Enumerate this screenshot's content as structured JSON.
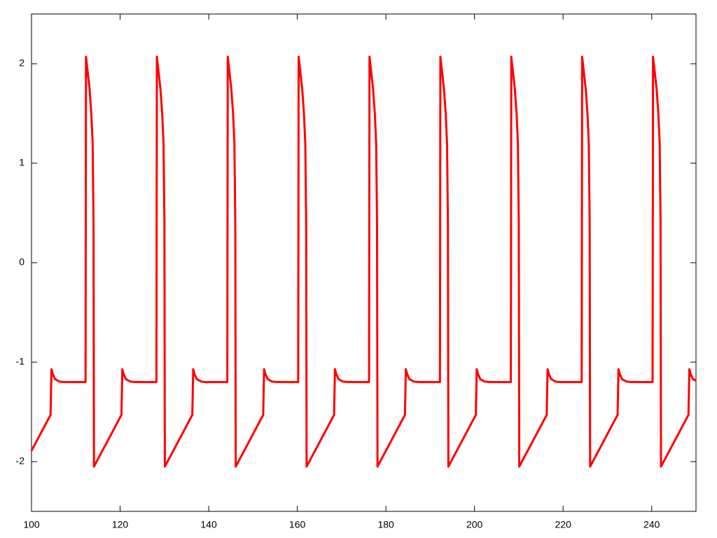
{
  "chart_data": {
    "type": "line",
    "x": [
      100,
      104.3,
      104.5,
      104.8,
      105.3,
      106.3,
      107.3,
      112.2,
      112.3,
      112.6,
      113.1,
      113.5,
      113.8,
      114.0,
      114.1,
      120.3,
      120.5,
      120.8,
      121.3,
      122.3,
      123.3,
      128.2,
      128.3,
      128.6,
      129.1,
      129.5,
      129.8,
      130.0,
      130.1,
      136.3,
      136.5,
      136.8,
      137.3,
      138.3,
      139.3,
      144.2,
      144.3,
      144.6,
      145.1,
      145.5,
      145.8,
      146.0,
      146.1,
      152.3,
      152.5,
      152.8,
      153.3,
      154.3,
      155.3,
      160.2,
      160.3,
      160.6,
      161.1,
      161.5,
      161.8,
      162.0,
      162.1,
      168.3,
      168.5,
      168.8,
      169.3,
      170.3,
      171.3,
      176.2,
      176.3,
      176.6,
      177.1,
      177.5,
      177.8,
      178.0,
      178.1,
      184.3,
      184.5,
      184.8,
      185.3,
      186.3,
      187.3,
      192.2,
      192.3,
      192.6,
      193.1,
      193.5,
      193.8,
      194.0,
      194.1,
      200.3,
      200.5,
      200.8,
      201.3,
      202.3,
      203.3,
      208.2,
      208.3,
      208.6,
      209.1,
      209.5,
      209.8,
      210.0,
      210.1,
      216.3,
      216.5,
      216.8,
      217.3,
      218.3,
      219.3,
      224.2,
      224.3,
      224.6,
      225.1,
      225.5,
      225.8,
      226.0,
      226.1,
      232.3,
      232.5,
      232.8,
      233.3,
      234.3,
      235.3,
      240.2,
      240.3,
      240.6,
      241.1,
      241.5,
      241.8,
      242.0,
      242.1,
      248.3,
      248.5,
      248.8,
      249.3,
      250
    ],
    "series": [
      {
        "color": "#ff0000",
        "values": [
          -1.89,
          -1.53,
          -1.07,
          -1.12,
          -1.17,
          -1.195,
          -1.2,
          -1.2,
          2.07,
          1.95,
          1.75,
          1.5,
          1.2,
          0.4,
          -2.05,
          -1.53,
          -1.07,
          -1.12,
          -1.17,
          -1.195,
          -1.2,
          -1.2,
          2.07,
          1.95,
          1.75,
          1.5,
          1.2,
          0.4,
          -2.05,
          -1.53,
          -1.07,
          -1.12,
          -1.17,
          -1.195,
          -1.2,
          -1.2,
          2.07,
          1.95,
          1.75,
          1.5,
          1.2,
          0.4,
          -2.05,
          -1.53,
          -1.07,
          -1.12,
          -1.17,
          -1.195,
          -1.2,
          -1.2,
          2.07,
          1.95,
          1.75,
          1.5,
          1.2,
          0.4,
          -2.05,
          -1.53,
          -1.07,
          -1.12,
          -1.17,
          -1.195,
          -1.2,
          -1.2,
          2.07,
          1.95,
          1.75,
          1.5,
          1.2,
          0.4,
          -2.05,
          -1.53,
          -1.07,
          -1.12,
          -1.17,
          -1.195,
          -1.2,
          -1.2,
          2.07,
          1.95,
          1.75,
          1.5,
          1.2,
          0.4,
          -2.05,
          -1.53,
          -1.07,
          -1.12,
          -1.17,
          -1.195,
          -1.2,
          -1.2,
          2.07,
          1.95,
          1.75,
          1.5,
          1.2,
          0.4,
          -2.05,
          -1.53,
          -1.07,
          -1.12,
          -1.17,
          -1.195,
          -1.2,
          -1.2,
          2.07,
          1.95,
          1.75,
          1.5,
          1.2,
          0.4,
          -2.05,
          -1.53,
          -1.07,
          -1.12,
          -1.17,
          -1.195,
          -1.2,
          -1.2,
          2.07,
          1.95,
          1.75,
          1.5,
          1.2,
          0.4,
          -2.05,
          -1.53,
          -1.07,
          -1.12,
          -1.17,
          -1.185
        ]
      }
    ],
    "xlim": [
      100,
      250
    ],
    "xticks": [
      100,
      120,
      140,
      160,
      180,
      200,
      220,
      240
    ],
    "ylim": [
      -2.5,
      2.5
    ],
    "yticks": [
      -2,
      -1,
      0,
      1,
      2
    ],
    "grid": false
  }
}
